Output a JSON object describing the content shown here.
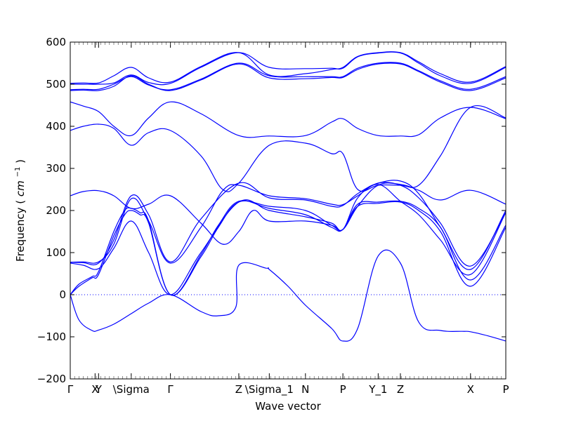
{
  "chart_data": {
    "type": "line",
    "title": "",
    "xlabel": "Wave vector",
    "ylabel": "Frequency (cm⁻¹)",
    "ylabel_text": "Frequency",
    "ylabel_unit_base": "cm",
    "ylabel_unit_exp": "−1",
    "ylim": [
      -200,
      600
    ],
    "yticks": [
      -200,
      -100,
      0,
      100,
      200,
      300,
      400,
      500,
      600
    ],
    "xlim": [
      0,
      1
    ],
    "grid": false,
    "legend": "none",
    "line_color": "#0000ff",
    "zero_line": {
      "y": 0,
      "style": "dotted",
      "color": "#0000ff"
    },
    "high_symmetry_points": [
      {
        "label": "Γ",
        "x": 0.0
      },
      {
        "label": "X",
        "x": 0.057
      },
      {
        "label": "Y",
        "x": 0.065
      },
      {
        "label": "\\Sigma",
        "x": 0.14
      },
      {
        "label": "Γ",
        "x": 0.23
      },
      {
        "label": "Z",
        "x": 0.387
      },
      {
        "label": "\\Sigma_1",
        "x": 0.457
      },
      {
        "label": "N",
        "x": 0.54
      },
      {
        "label": "P",
        "x": 0.626
      },
      {
        "label": "Y_1",
        "x": 0.707
      },
      {
        "label": "Z",
        "x": 0.758
      },
      {
        "label": "X",
        "x": 0.919
      },
      {
        "label": "P",
        "x": 1.0
      }
    ],
    "series": [
      {
        "x": [
          0,
          0.02,
          0.05,
          0.065,
          0.1,
          0.14,
          0.18,
          0.23,
          0.3,
          0.34,
          0.38,
          0.387,
          0.45,
          0.457,
          0.5,
          0.54,
          0.6,
          0.626,
          0.66,
          0.707,
          0.758,
          0.8,
          0.85,
          0.9,
          0.919,
          0.96,
          1.0
        ],
        "y": [
          0,
          -60,
          -85,
          -84,
          -70,
          -45,
          -20,
          0,
          -40,
          -50,
          -30,
          70,
          63,
          60,
          20,
          -25,
          -80,
          -110,
          -80,
          92,
          75,
          -65,
          -85,
          -87,
          -88,
          -98,
          -110
        ]
      },
      {
        "x": [
          0,
          0.02,
          0.05,
          0.065,
          0.1,
          0.125,
          0.14,
          0.16,
          0.18,
          0.23,
          0.3,
          0.34,
          0.387,
          0.457,
          0.54,
          0.6,
          0.626,
          0.66,
          0.707,
          0.758,
          0.8,
          0.85,
          0.919,
          1.0
        ],
        "y": [
          0,
          20,
          40,
          48,
          140,
          190,
          200,
          190,
          170,
          0,
          90,
          160,
          220,
          210,
          200,
          165,
          155,
          210,
          217,
          220,
          200,
          150,
          20,
          160
        ]
      },
      {
        "x": [
          0,
          0.02,
          0.05,
          0.065,
          0.1,
          0.125,
          0.14,
          0.16,
          0.18,
          0.23,
          0.3,
          0.34,
          0.387,
          0.457,
          0.54,
          0.6,
          0.626,
          0.66,
          0.707,
          0.758,
          0.8,
          0.85,
          0.919,
          1.0
        ],
        "y": [
          0,
          25,
          43,
          55,
          150,
          200,
          205,
          195,
          175,
          0,
          95,
          165,
          222,
          205,
          190,
          160,
          155,
          215,
          220,
          222,
          205,
          160,
          35,
          165
        ]
      },
      {
        "x": [
          0,
          0.03,
          0.065,
          0.1,
          0.14,
          0.18,
          0.23,
          0.3,
          0.387,
          0.457,
          0.54,
          0.6,
          0.626,
          0.66,
          0.707,
          0.758,
          0.8,
          0.85,
          0.919,
          1.0
        ],
        "y": [
          75,
          70,
          62,
          110,
          175,
          100,
          0,
          100,
          220,
          200,
          185,
          170,
          155,
          230,
          262,
          222,
          190,
          130,
          48,
          195
        ]
      },
      {
        "x": [
          0,
          0.03,
          0.065,
          0.1,
          0.14,
          0.18,
          0.23,
          0.3,
          0.387,
          0.457,
          0.54,
          0.6,
          0.626,
          0.66,
          0.707,
          0.758,
          0.8,
          0.85,
          0.919,
          1.0
        ],
        "y": [
          77,
          76,
          75,
          130,
          235,
          190,
          78,
          180,
          265,
          230,
          225,
          210,
          212,
          240,
          265,
          270,
          240,
          160,
          60,
          200
        ]
      },
      {
        "x": [
          0,
          0.03,
          0.065,
          0.1,
          0.14,
          0.18,
          0.23,
          0.3,
          0.35,
          0.387,
          0.457,
          0.54,
          0.6,
          0.626,
          0.66,
          0.707,
          0.758,
          0.8,
          0.85,
          0.919,
          1.0
        ],
        "y": [
          77,
          78,
          78,
          120,
          228,
          175,
          75,
          160,
          247,
          260,
          235,
          228,
          215,
          214,
          235,
          265,
          260,
          230,
          170,
          68,
          195
        ]
      },
      {
        "x": [
          0,
          0.03,
          0.065,
          0.1,
          0.14,
          0.18,
          0.23,
          0.3,
          0.35,
          0.387,
          0.42,
          0.457,
          0.54,
          0.6,
          0.626,
          0.66,
          0.707,
          0.758,
          0.8,
          0.85,
          0.919,
          1.0
        ],
        "y": [
          235,
          245,
          247,
          235,
          205,
          215,
          235,
          170,
          120,
          150,
          200,
          175,
          175,
          165,
          155,
          210,
          260,
          262,
          248,
          225,
          248,
          215
        ]
      },
      {
        "x": [
          0,
          0.03,
          0.065,
          0.1,
          0.14,
          0.18,
          0.23,
          0.3,
          0.35,
          0.387,
          0.457,
          0.54,
          0.6,
          0.626,
          0.66,
          0.707,
          0.758,
          0.8,
          0.85,
          0.919,
          1.0
        ],
        "y": [
          390,
          400,
          405,
          395,
          355,
          385,
          390,
          330,
          250,
          265,
          355,
          360,
          335,
          335,
          250,
          260,
          260,
          260,
          330,
          445,
          420
        ]
      },
      {
        "x": [
          0,
          0.03,
          0.065,
          0.1,
          0.14,
          0.18,
          0.23,
          0.3,
          0.387,
          0.457,
          0.54,
          0.6,
          0.626,
          0.66,
          0.707,
          0.758,
          0.8,
          0.85,
          0.919,
          1.0
        ],
        "y": [
          458,
          448,
          435,
          400,
          378,
          420,
          458,
          430,
          378,
          377,
          378,
          410,
          418,
          395,
          378,
          377,
          380,
          420,
          445,
          418
        ]
      },
      {
        "x": [
          0,
          0.03,
          0.065,
          0.1,
          0.14,
          0.18,
          0.23,
          0.3,
          0.387,
          0.457,
          0.54,
          0.6,
          0.626,
          0.66,
          0.707,
          0.758,
          0.8,
          0.85,
          0.919,
          1.0
        ],
        "y": [
          485,
          486,
          485,
          495,
          520,
          500,
          485,
          510,
          548,
          515,
          513,
          516,
          516,
          535,
          548,
          548,
          530,
          505,
          485,
          515
        ]
      },
      {
        "x": [
          0,
          0.03,
          0.065,
          0.1,
          0.14,
          0.18,
          0.23,
          0.3,
          0.387,
          0.457,
          0.54,
          0.6,
          0.626,
          0.66,
          0.707,
          0.758,
          0.8,
          0.85,
          0.919,
          1.0
        ],
        "y": [
          487,
          488,
          488,
          500,
          518,
          498,
          487,
          512,
          550,
          520,
          518,
          518,
          518,
          538,
          550,
          550,
          532,
          508,
          488,
          518
        ]
      },
      {
        "x": [
          0,
          0.03,
          0.065,
          0.1,
          0.14,
          0.18,
          0.23,
          0.3,
          0.387,
          0.457,
          0.54,
          0.6,
          0.626,
          0.66,
          0.707,
          0.758,
          0.8,
          0.85,
          0.919,
          1.0
        ],
        "y": [
          500,
          500,
          500,
          503,
          522,
          504,
          502,
          540,
          575,
          540,
          537,
          538,
          538,
          565,
          574,
          574,
          550,
          520,
          502,
          540
        ]
      },
      {
        "x": [
          0,
          0.03,
          0.065,
          0.1,
          0.14,
          0.18,
          0.23,
          0.3,
          0.387,
          0.457,
          0.54,
          0.6,
          0.626,
          0.66,
          0.707,
          0.758,
          0.8,
          0.85,
          0.919,
          1.0
        ],
        "y": [
          502,
          503,
          503,
          520,
          540,
          515,
          505,
          542,
          575,
          522,
          525,
          535,
          540,
          566,
          575,
          575,
          553,
          525,
          505,
          542
        ]
      }
    ]
  }
}
